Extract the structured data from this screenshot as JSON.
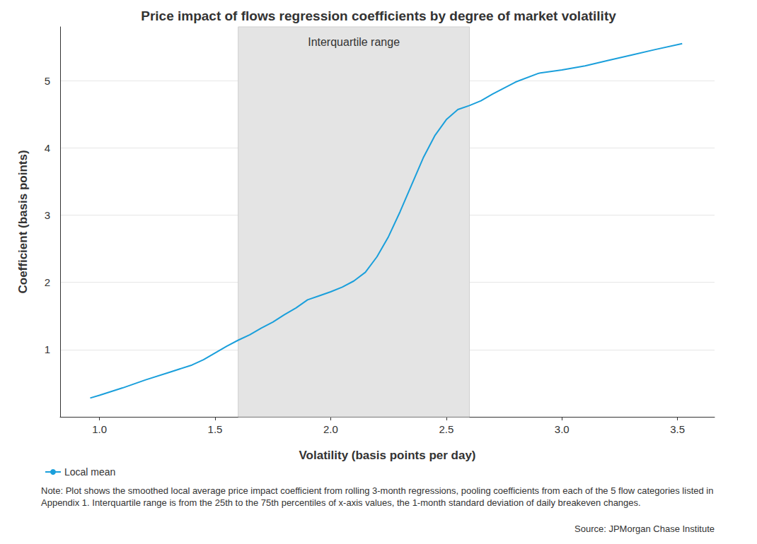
{
  "chart_data": {
    "type": "line",
    "title": "Price impact of flows regression coefficients by degree of market volatility",
    "x_label": "Volatility (basis points per day)",
    "y_label": "Coefficient (basis points)",
    "x": [
      0.96,
      1.0,
      1.1,
      1.2,
      1.3,
      1.4,
      1.45,
      1.5,
      1.55,
      1.6,
      1.65,
      1.7,
      1.75,
      1.8,
      1.85,
      1.9,
      1.95,
      2.0,
      2.05,
      2.1,
      2.15,
      2.2,
      2.25,
      2.3,
      2.35,
      2.4,
      2.45,
      2.5,
      2.55,
      2.6,
      2.65,
      2.7,
      2.8,
      2.9,
      3.0,
      3.1,
      3.2,
      3.3,
      3.4,
      3.52
    ],
    "series": [
      {
        "name": "Local mean",
        "color": "#1a9fdb",
        "line_style": "solid",
        "values": [
          0.28,
          0.32,
          0.43,
          0.55,
          0.66,
          0.77,
          0.85,
          0.95,
          1.05,
          1.14,
          1.22,
          1.32,
          1.41,
          1.52,
          1.62,
          1.74,
          1.8,
          1.86,
          1.93,
          2.02,
          2.15,
          2.38,
          2.68,
          3.05,
          3.45,
          3.85,
          4.18,
          4.42,
          4.57,
          4.63,
          4.7,
          4.8,
          4.98,
          5.11,
          5.16,
          5.22,
          5.3,
          5.38,
          5.46,
          5.55
        ]
      }
    ],
    "xlim": [
      0.83,
      3.66
    ],
    "xticks": [
      {
        "value": 1,
        "label": "1.0"
      },
      1.5,
      {
        "value": 2,
        "label": "2.0"
      },
      2.5,
      {
        "value": 3,
        "label": "3.0"
      },
      3.5
    ],
    "ylim": [
      0,
      5.8
    ],
    "yticks": [
      1,
      2,
      3,
      4,
      5
    ],
    "grid": true,
    "legend": "bottom",
    "annotations": [
      {
        "text": "Interquartile range",
        "x_range": [
          1.6,
          2.6
        ],
        "color": "#e4e4e4"
      }
    ],
    "note": "Note: Plot shows the smoothed local average price impact coefficient from rolling 3-month regressions, pooling coefficients from each of the 5 flow categories listed in Appendix 1. Interquartile range is from the 25th to the 75th percentiles of x-axis values, the 1-month standard deviation of daily breakeven changes.",
    "source": "Source: JPMorgan Chase Institute"
  }
}
